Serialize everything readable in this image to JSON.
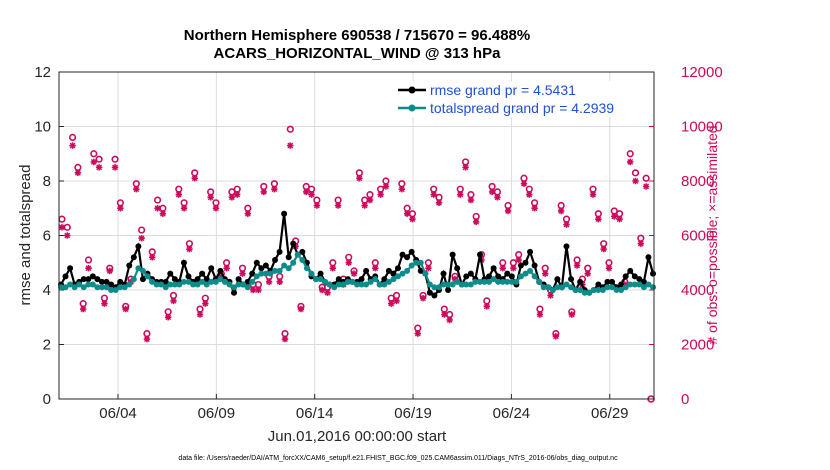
{
  "chart_data": {
    "type": "line",
    "title_line1": "Northern Hemisphere 690538 / 715670 = 96.488%",
    "title_line2": "ACARS_HORIZONTAL_WIND @ 313 hPa",
    "xlabel": "Jun.01,2016 00:00:00 start",
    "ylabel": "rmse and totalspread",
    "y2label": "# of obs: o=possible; ×=assimilated",
    "footnote": "data file: /Users/raeder/DAI/ATM_forcXX/CAM6_setup/f.e21.FHIST_BGC.f09_025.CAM6assim.011/Diags_NTrS_2016-06/obs_diag_output.nc",
    "xlim": [
      1,
      31.25
    ],
    "ylim": [
      0,
      12
    ],
    "y2lim": [
      0,
      12000
    ],
    "x_ticks": [
      {
        "x": 4,
        "label": "06/04"
      },
      {
        "x": 9,
        "label": "06/09"
      },
      {
        "x": 14,
        "label": "06/14"
      },
      {
        "x": 19,
        "label": "06/19"
      },
      {
        "x": 24,
        "label": "06/24"
      },
      {
        "x": 29,
        "label": "06/29"
      }
    ],
    "y_ticks": [
      0,
      2,
      4,
      6,
      8,
      10,
      12
    ],
    "y2_ticks": [
      0,
      2000,
      4000,
      6000,
      8000,
      10000,
      12000
    ],
    "colors": {
      "rmse": "#000000",
      "spread": "#0e8c8c",
      "obs": "#cc0a5a",
      "grid": "#dcdcdc"
    },
    "series": [
      {
        "name": "rmse grand pr = 4.5431",
        "color": "#000000",
        "values": [
          4.2,
          4.5,
          4.8,
          4.2,
          4.3,
          4.4,
          4.4,
          4.5,
          4.4,
          4.3,
          4.3,
          4.2,
          4.1,
          4.3,
          4.2,
          4.9,
          5.2,
          5.6,
          4.4,
          4.6,
          4.4,
          4.3,
          4.3,
          4.3,
          4.6,
          4.4,
          4.3,
          5.0,
          4.5,
          4.3,
          4.4,
          4.6,
          4.4,
          4.8,
          4.4,
          4.7,
          4.4,
          4.3,
          3.9,
          4.4,
          4.2,
          4.3,
          4.6,
          5.0,
          4.8,
          4.9,
          4.7,
          5.1,
          5.4,
          6.8,
          5.2,
          5.7,
          5.3,
          5.4,
          5.0,
          4.5,
          4.4,
          4.6,
          4.3,
          4.2,
          4.2,
          4.4,
          4.3,
          4.4,
          4.3,
          4.3,
          4.4,
          4.7,
          4.4,
          4.5,
          4.2,
          4.4,
          4.7,
          4.6,
          4.8,
          5.3,
          5.2,
          5.4,
          5.1,
          4.7,
          4.6,
          3.9,
          3.8,
          4.0,
          4.6,
          4.0,
          5.3,
          4.8,
          4.2,
          4.5,
          4.6,
          4.4,
          5.3,
          4.4,
          4.5,
          4.8,
          4.5,
          4.4,
          4.6,
          4.5,
          4.2,
          4.9,
          5.0,
          5.4,
          4.9,
          4.3,
          4.2,
          4.1,
          4.0,
          4.4,
          4.1,
          5.6,
          4.4,
          4.0,
          4.3,
          4.0,
          3.9,
          4.0,
          4.2,
          4.1,
          4.3,
          4.3,
          4.1,
          4.2,
          4.5,
          4.7,
          4.5,
          4.4,
          4.3,
          5.2,
          4.6
        ]
      },
      {
        "name": "totalspread grand pr = 4.2939",
        "color": "#0e8c8c",
        "values": [
          4.1,
          4.1,
          4.2,
          4.1,
          4.2,
          4.1,
          4.2,
          4.2,
          4.1,
          4.1,
          4.1,
          4.0,
          4.0,
          4.1,
          4.1,
          4.2,
          4.4,
          4.8,
          4.7,
          4.5,
          4.3,
          4.2,
          4.2,
          4.1,
          4.2,
          4.2,
          4.2,
          4.3,
          4.3,
          4.2,
          4.2,
          4.3,
          4.2,
          4.3,
          4.3,
          4.4,
          4.3,
          4.2,
          4.1,
          4.2,
          4.2,
          4.1,
          4.3,
          4.5,
          4.6,
          4.6,
          4.6,
          4.7,
          4.7,
          4.9,
          4.8,
          5.0,
          5.3,
          5.1,
          4.8,
          4.6,
          4.4,
          4.4,
          4.3,
          4.2,
          4.1,
          4.2,
          4.2,
          4.3,
          4.3,
          4.2,
          4.2,
          4.2,
          4.3,
          4.4,
          4.2,
          4.2,
          4.3,
          4.4,
          4.5,
          4.6,
          4.7,
          4.9,
          5.0,
          5.0,
          4.6,
          4.2,
          4.1,
          4.1,
          4.2,
          4.2,
          4.2,
          4.3,
          4.2,
          4.2,
          4.2,
          4.3,
          4.3,
          4.3,
          4.3,
          4.4,
          4.3,
          4.3,
          4.3,
          4.3,
          4.3,
          4.5,
          4.6,
          4.7,
          4.5,
          4.3,
          4.1,
          4.1,
          4.0,
          4.1,
          4.1,
          4.2,
          4.1,
          4.0,
          4.0,
          3.9,
          3.9,
          4.0,
          4.0,
          4.0,
          4.1,
          4.1,
          4.0,
          4.0,
          4.1,
          4.2,
          4.2,
          4.2,
          4.1,
          4.2,
          4.1
        ]
      }
    ],
    "obs_possible": [
      6600,
      6300,
      9600,
      8500,
      3500,
      5100,
      9000,
      8800,
      3700,
      4800,
      8800,
      7200,
      3400,
      4400,
      7900,
      6200,
      2400,
      5400,
      7300,
      7000,
      3200,
      3800,
      7700,
      7200,
      5700,
      8300,
      3300,
      3700,
      7600,
      7200,
      4600,
      5000,
      7600,
      7700,
      4800,
      7000,
      4200,
      4200,
      7800,
      4500,
      7900,
      4500,
      2400,
      9900,
      5800,
      3400,
      7800,
      7700,
      7300,
      4100,
      4100,
      5000,
      7300,
      4400,
      5200,
      4700,
      8300,
      7300,
      7500,
      5000,
      7700,
      8000,
      3700,
      3800,
      7900,
      7000,
      6800,
      2600,
      3800,
      5000,
      7700,
      7400,
      3300,
      3100,
      4500,
      7700,
      8700,
      7500,
      6700,
      5300,
      3600,
      7800,
      7600,
      5000,
      7100,
      5000,
      5300,
      8100,
      7700,
      7200,
      3300,
      4800,
      4000,
      2400,
      7100,
      6600,
      3200,
      5100,
      4400,
      4800,
      7700,
      6800,
      5700,
      5000,
      6900,
      6800,
      4300,
      9000,
      8300,
      5900,
      8100
    ],
    "obs_assimilated": [
      6300,
      6000,
      9300,
      8300,
      3300,
      4800,
      8700,
      8500,
      3500,
      4700,
      8500,
      7000,
      3300,
      4300,
      7700,
      5900,
      2200,
      5200,
      7000,
      6800,
      3000,
      3600,
      7500,
      7000,
      5500,
      8100,
      3100,
      3500,
      7400,
      7000,
      4500,
      4800,
      7400,
      7500,
      4600,
      6800,
      4000,
      4000,
      7600,
      4300,
      7700,
      4300,
      2200,
      9300,
      5600,
      3300,
      7600,
      7500,
      7100,
      4000,
      3900,
      4800,
      7100,
      4200,
      5000,
      4600,
      8100,
      7100,
      7300,
      4800,
      7500,
      7800,
      3500,
      3600,
      7700,
      6800,
      6600,
      2400,
      3700,
      4800,
      7500,
      7200,
      3100,
      2900,
      4400,
      7500,
      8500,
      7300,
      6500,
      5100,
      3400,
      7600,
      7400,
      4800,
      6900,
      4800,
      5100,
      7900,
      7500,
      7000,
      3100,
      4600,
      3800,
      2300,
      6900,
      6400,
      3100,
      4900,
      4200,
      4600,
      7500,
      6600,
      5500,
      4800,
      6700,
      6600,
      4200,
      8700,
      8000,
      5700,
      7800
    ],
    "obs_endpoint": {
      "x": 31.1,
      "value": 0
    }
  }
}
